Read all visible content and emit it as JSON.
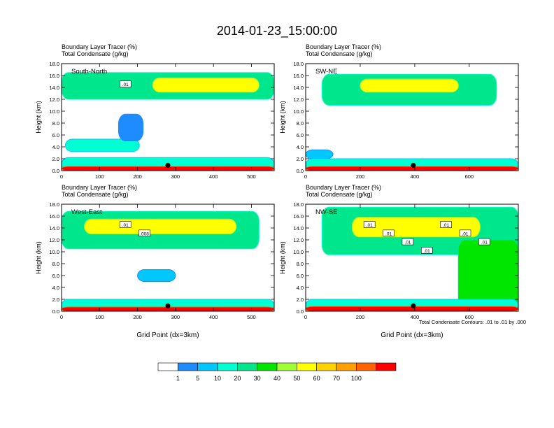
{
  "title": "2014-01-23_15:00:00",
  "subtitle_line1": "Boundary Layer Tracer   (%)",
  "subtitle_line2": "Total Condensate   (g/kg)",
  "ylabel": "Height (km)",
  "xlabel": "Grid Point (dx=3km)",
  "contour_note": "Total Condensate Contours: .01 to .01 by .000",
  "colors": {
    "fill_levels": [
      "#ffffff",
      "#1e8cff",
      "#00c8ff",
      "#00ffd2",
      "#00e68c",
      "#00e600",
      "#a0ff32",
      "#ffff00",
      "#ffd200",
      "#ffa000",
      "#ff6400",
      "#ff0000"
    ],
    "text": "#000000"
  },
  "colorbar": {
    "labels": [
      "1",
      "5",
      "10",
      "20",
      "30",
      "40",
      "50",
      "60",
      "70",
      "100"
    ]
  },
  "chart_data": [
    {
      "type": "heatmap",
      "panel_label": "South-North",
      "yticks": [
        "0.0",
        "2.0",
        "4.0",
        "6.0",
        "8.0",
        "10.0",
        "12.0",
        "14.0",
        "16.0",
        "18.0"
      ],
      "xticks": [
        "0",
        "100",
        "200",
        "300",
        "400",
        "500"
      ],
      "xlim": [
        0,
        560
      ],
      "ylim": [
        0,
        18
      ],
      "contour_labels": [
        ".01"
      ],
      "marker_x": 280,
      "layers": [
        {
          "level": 4,
          "x0": 0,
          "x1": 560,
          "y0": 12.0,
          "y1": 16.5
        },
        {
          "level": 7,
          "x0": 240,
          "x1": 520,
          "y0": 13.2,
          "y1": 15.6
        },
        {
          "level": 3,
          "x0": 10,
          "x1": 205,
          "y0": 3.2,
          "y1": 5.3
        },
        {
          "level": 1,
          "x0": 150,
          "x1": 215,
          "y0": 5.0,
          "y1": 9.5
        },
        {
          "level": 3,
          "x0": 0,
          "x1": 560,
          "y0": 0.0,
          "y1": 2.2
        },
        {
          "level": 11,
          "x0": 0,
          "x1": 560,
          "y0": 0.0,
          "y1": 0.7
        }
      ]
    },
    {
      "type": "heatmap",
      "panel_label": "SW-NE",
      "yticks": [
        "0.0",
        "2.0",
        "4.0",
        "6.0",
        "8.0",
        "10.0",
        "12.0",
        "14.0",
        "16.0",
        "18.0"
      ],
      "xticks": [
        "0",
        "200",
        "400",
        "600"
      ],
      "xlim": [
        0,
        780
      ],
      "ylim": [
        0,
        18
      ],
      "contour_labels": [],
      "marker_x": 395,
      "layers": [
        {
          "level": 4,
          "x0": 60,
          "x1": 700,
          "y0": 11.0,
          "y1": 16.2
        },
        {
          "level": 7,
          "x0": 200,
          "x1": 560,
          "y0": 13.2,
          "y1": 15.4
        },
        {
          "level": 2,
          "x0": 0,
          "x1": 100,
          "y0": 2.0,
          "y1": 3.5
        },
        {
          "level": 3,
          "x0": 0,
          "x1": 780,
          "y0": 0.0,
          "y1": 2.0
        },
        {
          "level": 11,
          "x0": 0,
          "x1": 780,
          "y0": 0.0,
          "y1": 0.7
        }
      ]
    },
    {
      "type": "heatmap",
      "panel_label": "West-East",
      "yticks": [
        "0.0",
        "2.0",
        "4.0",
        "6.0",
        "8.0",
        "10.0",
        "12.0",
        "14.0",
        "16.0",
        "18.0"
      ],
      "xticks": [
        "0",
        "100",
        "200",
        "300",
        "400",
        "500"
      ],
      "xlim": [
        0,
        560
      ],
      "ylim": [
        0,
        18
      ],
      "contour_labels": [
        ".01",
        ".008"
      ],
      "marker_x": 280,
      "layers": [
        {
          "level": 4,
          "x0": 0,
          "x1": 520,
          "y0": 10.5,
          "y1": 16.8
        },
        {
          "level": 7,
          "x0": 60,
          "x1": 460,
          "y0": 13.0,
          "y1": 15.5
        },
        {
          "level": 2,
          "x0": 200,
          "x1": 300,
          "y0": 5.0,
          "y1": 7.0
        },
        {
          "level": 3,
          "x0": 0,
          "x1": 560,
          "y0": 0.0,
          "y1": 2.0
        },
        {
          "level": 11,
          "x0": 0,
          "x1": 560,
          "y0": 0.0,
          "y1": 0.7
        }
      ]
    },
    {
      "type": "heatmap",
      "panel_label": "NW-SE",
      "yticks": [
        "0.0",
        "2.0",
        "4.0",
        "6.0",
        "8.0",
        "10.0",
        "12.0",
        "14.0",
        "16.0",
        "18.0"
      ],
      "xticks": [
        "0",
        "200",
        "400",
        "600"
      ],
      "xlim": [
        0,
        780
      ],
      "ylim": [
        0,
        18
      ],
      "contour_labels": [
        ".01",
        ".01",
        ".01",
        ".01",
        ".01",
        ".01",
        ".01"
      ],
      "marker_x": 395,
      "layers": [
        {
          "level": 4,
          "x0": 60,
          "x1": 780,
          "y0": 9.5,
          "y1": 17.5
        },
        {
          "level": 7,
          "x0": 170,
          "x1": 640,
          "y0": 12.5,
          "y1": 15.8
        },
        {
          "level": 5,
          "x0": 560,
          "x1": 780,
          "y0": 0.0,
          "y1": 12.0
        },
        {
          "level": 3,
          "x0": 0,
          "x1": 780,
          "y0": 0.0,
          "y1": 2.0
        },
        {
          "level": 11,
          "x0": 0,
          "x1": 780,
          "y0": 0.0,
          "y1": 0.8
        }
      ]
    }
  ]
}
